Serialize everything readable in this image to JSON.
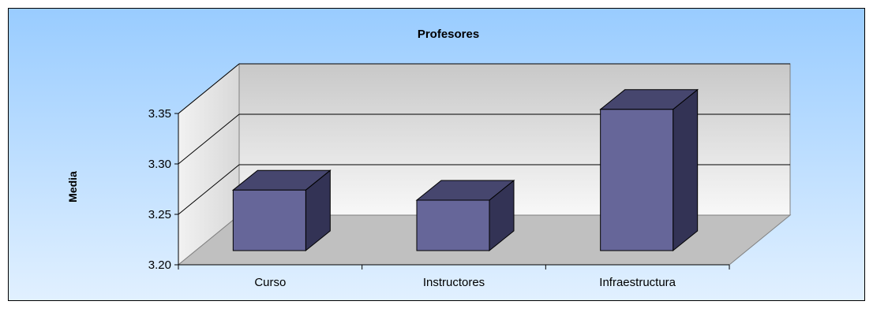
{
  "chart_data": {
    "type": "bar",
    "title": "Profesores",
    "xlabel": "",
    "ylabel": "Media",
    "categories": [
      "Curso",
      "Instructores",
      "Infraestructura"
    ],
    "values": [
      3.26,
      3.25,
      3.34
    ],
    "ylim": [
      3.2,
      3.35
    ],
    "yticks": [
      "3.20",
      "3.25",
      "3.30",
      "3.35"
    ],
    "grid": true,
    "three_d": true,
    "colors": {
      "bar_front": "#666699",
      "bar_top": "#46466e",
      "bar_side": "#333355",
      "floor": "#c0c0c0",
      "back_wall": "#d4d4d4",
      "side_wall": "#dcdcdc"
    }
  }
}
